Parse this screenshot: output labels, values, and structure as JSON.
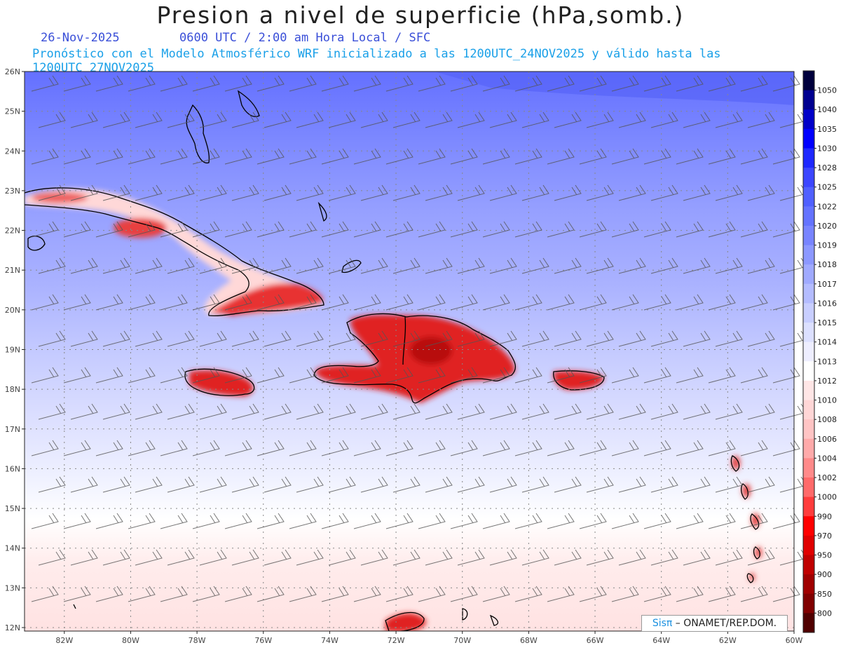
{
  "header": {
    "title": "Presion a nivel de superficie (hPa,somb.)",
    "date": "26-Nov-2025",
    "time_info": "0600 UTC / 2:00 am Hora Local / SFC",
    "model_info": "Pronóstico con el Modelo Atmosférico WRF inicializado a las 1200UTC_24NOV2025 y válido hasta las  1200UTC_27NOV2025"
  },
  "map": {
    "lat_labels": [
      "26N",
      "25N",
      "24N",
      "23N",
      "22N",
      "21N",
      "20N",
      "19N",
      "18N",
      "17N",
      "16N",
      "15N",
      "14N",
      "13N",
      "12N"
    ],
    "lon_labels": [
      "82W",
      "80W",
      "78W",
      "76W",
      "74W",
      "72W",
      "70W",
      "68W",
      "66W",
      "64W",
      "62W",
      "60W"
    ],
    "lat_range": [
      12,
      26
    ],
    "lon_range": [
      -83.2,
      -60
    ],
    "grid": true
  },
  "colorbar": {
    "levels": [
      "1050",
      "1040",
      "1035",
      "1030",
      "1028",
      "1025",
      "1022",
      "1020",
      "1019",
      "1018",
      "1017",
      "1016",
      "1015",
      "1014",
      "1013",
      "1012",
      "1010",
      "1008",
      "1006",
      "1004",
      "1002",
      "1000",
      "990",
      "970",
      "950",
      "900",
      "850",
      "800"
    ],
    "colors": [
      "#00003c",
      "#000090",
      "#0000c8",
      "#0000ff",
      "#1e28ff",
      "#3c46ff",
      "#5060ff",
      "#6473ff",
      "#7884ff",
      "#8c98ff",
      "#a0aaff",
      "#b4bcff",
      "#c8ceff",
      "#dce0ff",
      "#eeeeff",
      "#ffffff",
      "#ffe6e6",
      "#ffd6d6",
      "#ffc4c4",
      "#ffaaaa",
      "#ff8a8a",
      "#ff6a6a",
      "#ff3c3c",
      "#ff0000",
      "#e00000",
      "#c00000",
      "#a00000",
      "#800000",
      "#500000"
    ]
  },
  "credit": {
    "brand": "Sisπ",
    "org": " – ONAMET/REP.DOM."
  }
}
